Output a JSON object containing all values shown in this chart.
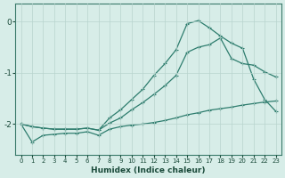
{
  "xlabel": "Humidex (Indice chaleur)",
  "ylabel": "",
  "bg_color": "#d7ede8",
  "grid_color": "#b8d4ce",
  "line_color": "#2e7d6e",
  "xlim": [
    -0.5,
    23.5
  ],
  "ylim": [
    -2.6,
    0.35
  ],
  "yticks": [
    0,
    -1,
    -2
  ],
  "xticks": [
    0,
    1,
    2,
    3,
    4,
    5,
    6,
    7,
    8,
    9,
    10,
    11,
    12,
    13,
    14,
    15,
    16,
    17,
    18,
    19,
    20,
    21,
    22,
    23
  ],
  "line1_x": [
    0,
    1,
    2,
    3,
    4,
    5,
    6,
    7,
    8,
    9,
    10,
    11,
    12,
    13,
    14,
    15,
    16,
    17,
    18,
    19,
    20,
    21,
    22,
    23
  ],
  "line1_y": [
    -2.0,
    -2.35,
    -2.22,
    -2.2,
    -2.18,
    -2.18,
    -2.15,
    -2.22,
    -2.1,
    -2.05,
    -2.02,
    -2.0,
    -1.97,
    -1.93,
    -1.88,
    -1.82,
    -1.78,
    -1.73,
    -1.7,
    -1.67,
    -1.63,
    -1.6,
    -1.57,
    -1.55
  ],
  "line2_x": [
    0,
    1,
    2,
    3,
    4,
    5,
    6,
    7,
    8,
    9,
    10,
    11,
    12,
    13,
    14,
    15,
    16,
    17,
    18,
    19,
    20,
    21,
    22,
    23
  ],
  "line2_y": [
    -2.0,
    -2.05,
    -2.08,
    -2.1,
    -2.1,
    -2.1,
    -2.08,
    -2.12,
    -1.98,
    -1.88,
    -1.72,
    -1.58,
    -1.42,
    -1.25,
    -1.05,
    -0.6,
    -0.5,
    -0.45,
    -0.32,
    -0.72,
    -0.82,
    -0.85,
    -0.98,
    -1.08
  ],
  "line3_x": [
    0,
    1,
    2,
    3,
    4,
    5,
    6,
    7,
    8,
    9,
    10,
    11,
    12,
    13,
    14,
    15,
    16,
    17,
    18,
    19,
    20,
    21,
    22,
    23
  ],
  "line3_y": [
    -2.0,
    -2.05,
    -2.08,
    -2.1,
    -2.1,
    -2.1,
    -2.08,
    -2.12,
    -1.88,
    -1.72,
    -1.52,
    -1.32,
    -1.05,
    -0.82,
    -0.55,
    -0.04,
    0.02,
    -0.12,
    -0.28,
    -0.42,
    -0.52,
    -1.12,
    -1.52,
    -1.75
  ]
}
